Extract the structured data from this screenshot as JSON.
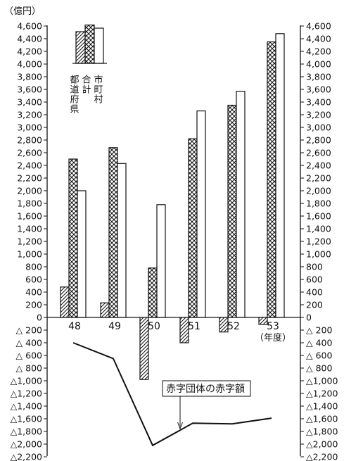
{
  "chart_data": {
    "type": "bar",
    "unit_label": "（億円）",
    "x_unit_label": "（年度）",
    "categories": [
      "48",
      "49",
      "50",
      "51",
      "52",
      "53"
    ],
    "series": [
      {
        "name": "都道府県",
        "pattern": "hatch",
        "values": [
          480,
          230,
          -980,
          -400,
          -230,
          -110
        ]
      },
      {
        "name": "合計",
        "pattern": "crosshatch",
        "values": [
          2500,
          2680,
          780,
          2820,
          3350,
          4350
        ]
      },
      {
        "name": "市町村",
        "pattern": "white",
        "values": [
          2000,
          2430,
          1780,
          3260,
          3570,
          4480
        ]
      }
    ],
    "line_series": {
      "name": "赤字団体の赤字額",
      "values": [
        -400,
        -650,
        -2020,
        -1670,
        -1680,
        -1590
      ]
    },
    "ylim": [
      -2200,
      4600
    ],
    "yticks": [
      {
        "v": 4600,
        "t": "4,600"
      },
      {
        "v": 4400,
        "t": "4,400"
      },
      {
        "v": 4200,
        "t": "4,200"
      },
      {
        "v": 4000,
        "t": "4,000"
      },
      {
        "v": 3800,
        "t": "3,800"
      },
      {
        "v": 3600,
        "t": "3,600"
      },
      {
        "v": 3400,
        "t": "3,400"
      },
      {
        "v": 3200,
        "t": "3,200"
      },
      {
        "v": 3000,
        "t": "3,000"
      },
      {
        "v": 2800,
        "t": "2,800"
      },
      {
        "v": 2600,
        "t": "2,600"
      },
      {
        "v": 2400,
        "t": "2,400"
      },
      {
        "v": 2200,
        "t": "2,200"
      },
      {
        "v": 2000,
        "t": "2,000"
      },
      {
        "v": 1800,
        "t": "1,800"
      },
      {
        "v": 1600,
        "t": "1,600"
      },
      {
        "v": 1400,
        "t": "1,400"
      },
      {
        "v": 1200,
        "t": "1,200"
      },
      {
        "v": 1000,
        "t": "1,000"
      },
      {
        "v": 800,
        "t": "800"
      },
      {
        "v": 600,
        "t": "600"
      },
      {
        "v": 400,
        "t": "400"
      },
      {
        "v": 200,
        "t": "200"
      },
      {
        "v": 0,
        "t": "0"
      },
      {
        "v": -200,
        "t": "△ 200"
      },
      {
        "v": -400,
        "t": "△ 400"
      },
      {
        "v": -600,
        "t": "△ 600"
      },
      {
        "v": -800,
        "t": "△ 800"
      },
      {
        "v": -1000,
        "t": "△1,000"
      },
      {
        "v": -1200,
        "t": "△1,200"
      },
      {
        "v": -1400,
        "t": "△1,400"
      },
      {
        "v": -1600,
        "t": "△1,600"
      },
      {
        "v": -1800,
        "t": "△1,800"
      },
      {
        "v": -2000,
        "t": "△2,000"
      },
      {
        "v": -2200,
        "t": "△2,200"
      }
    ],
    "legend_position": "top-left",
    "legend": [
      {
        "label": "都道府県",
        "pattern": "hatch",
        "value": 1800
      },
      {
        "label": "合計",
        "pattern": "crosshatch",
        "value": 2180
      },
      {
        "label": "市町村",
        "pattern": "white",
        "value": 2000
      }
    ],
    "annotation": "赤字団体の赤字額",
    "grid": false
  }
}
